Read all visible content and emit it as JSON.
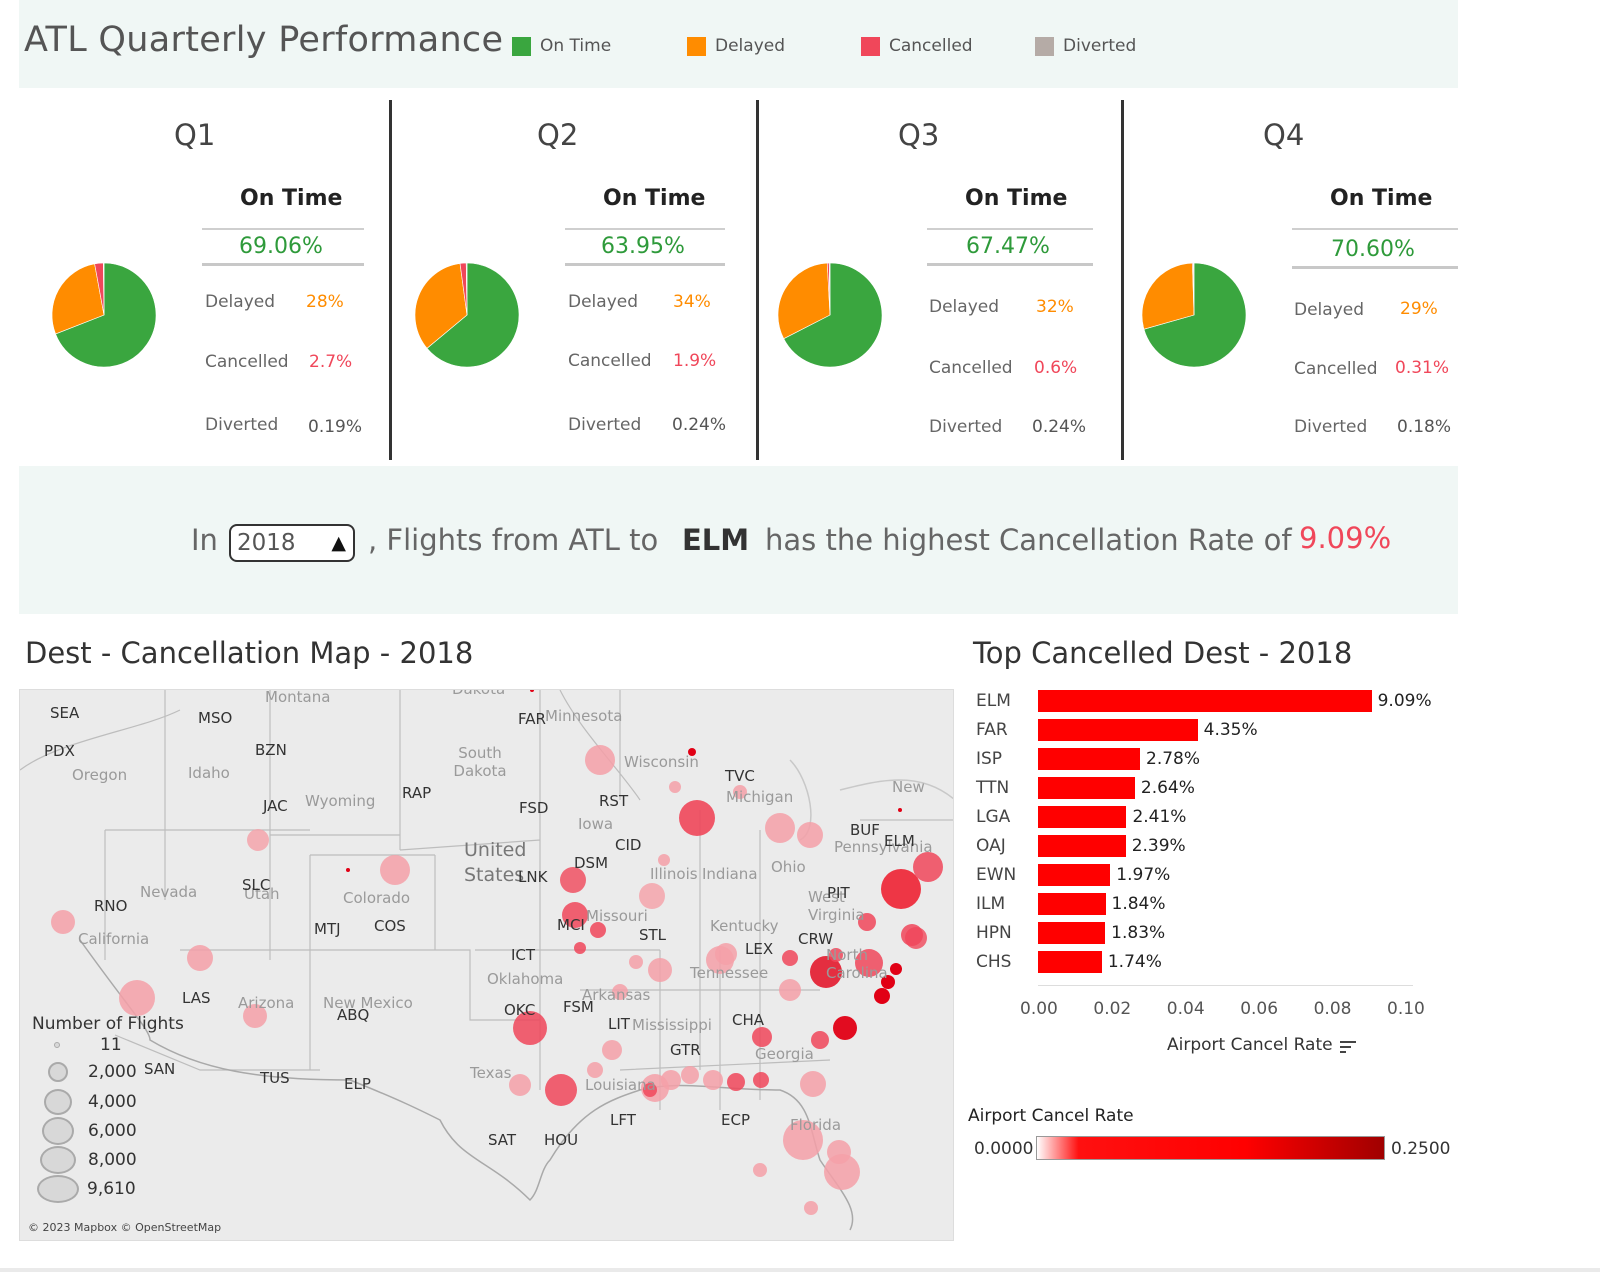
{
  "header": {
    "title": "ATL Quarterly Performance",
    "legend": [
      {
        "label": "On Time",
        "color": "#3aa63f"
      },
      {
        "label": "Delayed",
        "color": "#ff8c00"
      },
      {
        "label": "Cancelled",
        "color": "#f0475a"
      },
      {
        "label": "Diverted",
        "color": "#b5aba6"
      }
    ]
  },
  "quarters": [
    {
      "name": "Q1",
      "ontime_label": "On Time",
      "ontime": "69.06%",
      "delayed": "28%",
      "cancelled": "2.7%",
      "diverted": "0.19%",
      "pie": [
        69.06,
        28.05,
        2.7,
        0.19
      ]
    },
    {
      "name": "Q2",
      "ontime_label": "On Time",
      "ontime": "63.95%",
      "delayed": "34%",
      "cancelled": "1.9%",
      "diverted": "0.24%",
      "pie": [
        63.95,
        33.91,
        1.9,
        0.24
      ]
    },
    {
      "name": "Q3",
      "ontime_label": "On Time",
      "ontime": "67.47%",
      "delayed": "32%",
      "cancelled": "0.6%",
      "diverted": "0.24%",
      "pie": [
        67.47,
        31.69,
        0.6,
        0.24
      ]
    },
    {
      "name": "Q4",
      "ontime_label": "On Time",
      "ontime": "70.60%",
      "delayed": "29%",
      "cancelled": "0.31%",
      "diverted": "0.18%",
      "pie": [
        70.6,
        28.91,
        0.31,
        0.18
      ]
    }
  ],
  "row_labels": {
    "delayed": "Delayed",
    "cancelled": "Cancelled",
    "diverted": "Diverted"
  },
  "insight": {
    "prefix": "In",
    "year": "2018",
    "middle": ", Flights from ATL to",
    "airport": "ELM",
    "suffix": "has the highest Cancellation Rate of",
    "rate": "9.09%"
  },
  "map": {
    "title": "Dest - Cancellation Map - 2018",
    "copyright": "© 2023 Mapbox © OpenStreetMap",
    "cities": [
      "SEA",
      "PDX",
      "MSO",
      "BZN",
      "JAC",
      "RAP",
      "FAR",
      "FSD",
      "RST",
      "TVC",
      "BUF",
      "ELM",
      "DSM",
      "CID",
      "LNK",
      "MCI",
      "STL",
      "ICT",
      "OKC",
      "FSM",
      "LIT",
      "CHA",
      "GTR",
      "LEX",
      "CRW",
      "PIT",
      "SLC",
      "RNO",
      "MTJ",
      "COS",
      "LAS",
      "ABQ",
      "SAN",
      "TUS",
      "ELP",
      "SAT",
      "HOU",
      "LFT",
      "ECP"
    ],
    "regions": [
      "Montana",
      "Dakota",
      "Minnesota",
      "Oregon",
      "Idaho",
      "Wyoming",
      "South Dakota",
      "Wisconsin",
      "Michigan",
      "Iowa",
      "Nevada",
      "Utah",
      "Colorado",
      "California",
      "Illinois",
      "Indiana",
      "Ohio",
      "Pennsylvania",
      "Missouri",
      "Kentucky",
      "West Virginia",
      "Tennessee",
      "Oklahoma",
      "Arkansas",
      "Mississippi",
      "Georgia",
      "Arizona",
      "New Mexico",
      "Texas",
      "Louisiana",
      "Florida",
      "New",
      "North Carolina",
      "United States"
    ],
    "legend_title": "Number of Flights",
    "legend_values": [
      "11",
      "2,000",
      "4,000",
      "6,000",
      "8,000",
      "9,610"
    ]
  },
  "chart_data": {
    "type": "bar",
    "title": "Top Cancelled Dest - 2018",
    "categories": [
      "ELM",
      "FAR",
      "ISP",
      "TTN",
      "LGA",
      "OAJ",
      "EWN",
      "ILM",
      "HPN",
      "CHS"
    ],
    "values": [
      0.0909,
      0.0435,
      0.0278,
      0.0264,
      0.0241,
      0.0239,
      0.0197,
      0.0184,
      0.0183,
      0.0174
    ],
    "labels": [
      "9.09%",
      "4.35%",
      "2.78%",
      "2.64%",
      "2.41%",
      "2.39%",
      "1.97%",
      "1.84%",
      "1.83%",
      "1.74%"
    ],
    "xlabel": "Airport Cancel Rate",
    "xlim": [
      0,
      0.1
    ],
    "xticks": [
      "0.00",
      "0.02",
      "0.04",
      "0.06",
      "0.08",
      "0.10"
    ],
    "bar_color": "#ff0000"
  },
  "color_legend": {
    "title": "Airport Cancel Rate",
    "min": "0.0000",
    "max": "0.2500"
  }
}
